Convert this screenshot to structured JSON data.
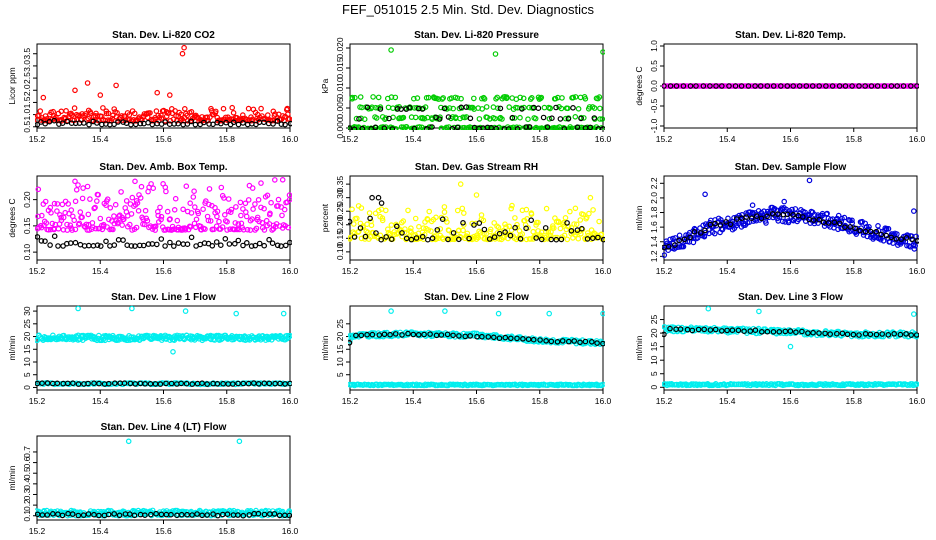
{
  "page": {
    "title": "FEF_051015  2.5 Min. Std. Dev. Diagnostics"
  },
  "chart_data": [
    {
      "id": "li820-co2",
      "type": "scatter",
      "title": "Stan. Dev. Li-820 CO2",
      "ylabel": "Licor ppm",
      "xlim": [
        15.2,
        16.0
      ],
      "ylim": [
        0.45,
        3.9
      ],
      "xticks": [
        15.2,
        15.4,
        15.6,
        15.8,
        16.0
      ],
      "xtick_labels": [
        "15.2",
        "15.4",
        "15.6",
        "15.8",
        "16.0"
      ],
      "yticks": [
        0.5,
        1.0,
        1.5,
        2.0,
        2.5,
        3.0,
        3.5
      ],
      "ytick_labels": [
        "0.5",
        "1.0",
        "1.5",
        "2.0",
        "2.5",
        "3.0",
        "3.5"
      ],
      "series": [
        {
          "color": "#ff0000",
          "gen": {
            "kind": "noise",
            "n": 240,
            "base": 0.85,
            "spread": 0.35,
            "seed": 11
          },
          "points": [
            [
              15.36,
              2.3
            ],
            [
              15.45,
              2.2
            ],
            [
              15.58,
              1.9
            ],
            [
              15.62,
              1.8
            ],
            [
              15.66,
              3.5
            ],
            [
              15.665,
              3.75
            ],
            [
              15.32,
              2.0
            ],
            [
              15.22,
              1.7
            ],
            [
              15.4,
              1.8
            ],
            [
              15.99,
              1.2
            ]
          ]
        },
        {
          "color": "#000000",
          "gen": {
            "kind": "noise",
            "n": 60,
            "base": 0.62,
            "spread": 0.1,
            "seed": 12
          }
        }
      ]
    },
    {
      "id": "li820-pressure",
      "type": "scatter",
      "title": "Stan. Dev. Li-820 Pressure",
      "ylabel": "kPa",
      "xlim": [
        15.2,
        16.0
      ],
      "ylim": [
        0.0,
        0.021
      ],
      "xticks": [
        15.2,
        15.4,
        15.6,
        15.8,
        16.0
      ],
      "xtick_labels": [
        "15.2",
        "15.4",
        "15.6",
        "15.8",
        "16.0"
      ],
      "yticks": [
        0.0,
        0.005,
        0.01,
        0.015,
        0.02
      ],
      "ytick_labels": [
        "0.000",
        "0.005",
        "0.010",
        "0.015",
        "0.020"
      ],
      "series": [
        {
          "color": "#00cc00",
          "gen": {
            "kind": "levels",
            "n": 320,
            "levels": [
              0.0,
              0.0,
              0.0025,
              0.005,
              0.0075
            ],
            "seed": 21
          },
          "points": [
            [
              15.33,
              0.0195
            ],
            [
              15.66,
              0.0185
            ],
            [
              16.0,
              0.019
            ]
          ]
        },
        {
          "color": "#000000",
          "gen": {
            "kind": "levels",
            "n": 60,
            "levels": [
              0.0,
              0.0,
              0.0025,
              0.005
            ],
            "seed": 22
          }
        }
      ]
    },
    {
      "id": "li820-temp",
      "type": "scatter",
      "title": "Stan. Dev. Li-820 Temp.",
      "ylabel": "degrees C",
      "xlim": [
        15.2,
        16.0
      ],
      "ylim": [
        -1.05,
        1.05
      ],
      "xticks": [
        15.2,
        15.4,
        15.6,
        15.8,
        16.0
      ],
      "xtick_labels": [
        "15.2",
        "15.4",
        "15.6",
        "15.8",
        "16.0"
      ],
      "yticks": [
        -1.0,
        -0.5,
        0.0,
        0.5,
        1.0
      ],
      "ytick_labels": [
        "-1.0",
        "-0.5",
        "0.0",
        "0.5",
        "1.0"
      ],
      "series": [
        {
          "color": "#ff00ff",
          "gen": {
            "kind": "line",
            "n": 200,
            "base": 0.0,
            "jitter": 0.0,
            "seed": 31
          }
        },
        {
          "color": "#000000",
          "gen": {
            "kind": "line",
            "n": 40,
            "base": 0.0,
            "jitter": 0.0,
            "seed": 32
          }
        }
      ]
    },
    {
      "id": "amb-box-temp",
      "type": "scatter",
      "title": "Stan. Dev. Amb. Box Temp.",
      "ylabel": "degrees C",
      "xlim": [
        15.2,
        16.0
      ],
      "ylim": [
        0.085,
        0.245
      ],
      "xticks": [
        15.2,
        15.4,
        15.6,
        15.8,
        16.0
      ],
      "xtick_labels": [
        "15.2",
        "15.4",
        "15.6",
        "15.8",
        "16.0"
      ],
      "yticks": [
        0.1,
        0.15,
        0.2
      ],
      "ytick_labels": [
        "0.10",
        "0.15",
        "0.20"
      ],
      "series": [
        {
          "color": "#ff00ff",
          "gen": {
            "kind": "noise",
            "n": 300,
            "base": 0.16,
            "spread": 0.06,
            "seed": 41
          },
          "points": [
            [
              15.32,
              0.235
            ],
            [
              15.51,
              0.235
            ],
            [
              15.36,
              0.225
            ]
          ]
        },
        {
          "color": "#000000",
          "gen": {
            "kind": "noise",
            "n": 60,
            "base": 0.115,
            "spread": 0.012,
            "seed": 42
          }
        }
      ]
    },
    {
      "id": "gas-stream-rh",
      "type": "scatter",
      "title": "Stan. Dev. Gas Stream RH",
      "ylabel": "percent",
      "xlim": [
        15.2,
        16.0
      ],
      "ylim": [
        0.07,
        0.38
      ],
      "xticks": [
        15.2,
        15.4,
        15.6,
        15.8,
        16.0
      ],
      "xtick_labels": [
        "15.2",
        "15.4",
        "15.6",
        "15.8",
        "16.0"
      ],
      "yticks": [
        0.1,
        0.15,
        0.2,
        0.25,
        0.3,
        0.35
      ],
      "ytick_labels": [
        "0.10",
        "0.15",
        "0.20",
        "0.25",
        "0.30",
        "0.35"
      ],
      "series": [
        {
          "color": "#ffff00",
          "gen": {
            "kind": "noise",
            "n": 300,
            "base": 0.17,
            "spread": 0.08,
            "seed": 51
          },
          "points": [
            [
              15.55,
              0.35
            ],
            [
              15.6,
              0.31
            ],
            [
              15.96,
              0.3
            ]
          ]
        },
        {
          "color": "#000000",
          "gen": {
            "kind": "noise",
            "n": 50,
            "base": 0.16,
            "spread": 0.05,
            "seed": 52
          },
          "points": [
            [
              15.27,
              0.3
            ],
            [
              15.29,
              0.3
            ],
            [
              15.3,
              0.28
            ]
          ]
        }
      ]
    },
    {
      "id": "sample-flow",
      "type": "scatter",
      "title": "Stan. Dev. Sample Flow",
      "ylabel": "ml/min",
      "xlim": [
        15.2,
        16.0
      ],
      "ylim": [
        1.15,
        2.3
      ],
      "xticks": [
        15.2,
        15.4,
        15.6,
        15.8,
        16.0
      ],
      "xtick_labels": [
        "15.2",
        "15.4",
        "15.6",
        "15.8",
        "16.0"
      ],
      "yticks": [
        1.2,
        1.4,
        1.6,
        1.8,
        2.0,
        2.2
      ],
      "ytick_labels": [
        "1.2",
        "1.4",
        "1.6",
        "1.8",
        "2.0",
        "2.2"
      ],
      "series": [
        {
          "color": "#0000dd",
          "gen": {
            "kind": "curve",
            "n": 320,
            "knots": [
              [
                15.2,
                1.3
              ],
              [
                15.35,
                1.6
              ],
              [
                15.55,
                1.78
              ],
              [
                15.7,
                1.72
              ],
              [
                15.85,
                1.55
              ],
              [
                16.0,
                1.38
              ]
            ],
            "spread": 0.1,
            "seed": 61
          },
          "points": [
            [
              15.33,
              2.05
            ],
            [
              15.66,
              2.24
            ],
            [
              15.99,
              1.82
            ],
            [
              15.58,
              1.95
            ],
            [
              15.48,
              1.9
            ]
          ]
        },
        {
          "color": "#000000",
          "gen": {
            "kind": "curve",
            "n": 50,
            "knots": [
              [
                15.2,
                1.3
              ],
              [
                15.35,
                1.62
              ],
              [
                15.55,
                1.78
              ],
              [
                15.7,
                1.7
              ],
              [
                15.85,
                1.55
              ],
              [
                16.0,
                1.4
              ]
            ],
            "spread": 0.03,
            "seed": 62
          }
        }
      ]
    },
    {
      "id": "line1-flow",
      "type": "scatter",
      "title": "Stan. Dev. Line 1 Flow",
      "ylabel": "ml/min",
      "xlim": [
        15.2,
        16.0
      ],
      "ylim": [
        -1,
        32
      ],
      "xticks": [
        15.2,
        15.4,
        15.6,
        15.8,
        16.0
      ],
      "xtick_labels": [
        "15.2",
        "15.4",
        "15.6",
        "15.8",
        "16.0"
      ],
      "yticks": [
        0,
        5,
        10,
        15,
        20,
        25,
        30
      ],
      "ytick_labels": [
        "0",
        "5",
        "10",
        "15",
        "20",
        "25",
        "30"
      ],
      "series": [
        {
          "color": "#00eeee",
          "gen": {
            "kind": "line",
            "n": 300,
            "base": 19.5,
            "jitter": 1.0,
            "seed": 71
          },
          "points": [
            [
              15.33,
              31
            ],
            [
              15.5,
              31
            ],
            [
              15.67,
              30
            ],
            [
              15.83,
              29
            ],
            [
              15.98,
              29
            ],
            [
              15.63,
              14
            ]
          ]
        },
        {
          "color": "#00eeee",
          "gen": {
            "kind": "line",
            "n": 150,
            "base": 1.5,
            "jitter": 0.3,
            "seed": 72
          }
        },
        {
          "color": "#000000",
          "gen": {
            "kind": "line",
            "n": 50,
            "base": 1.5,
            "jitter": 0.2,
            "seed": 73
          }
        }
      ]
    },
    {
      "id": "line2-flow",
      "type": "scatter",
      "title": "Stan. Dev. Line 2 Flow",
      "ylabel": "ml/min",
      "xlim": [
        15.2,
        16.0
      ],
      "ylim": [
        -1,
        32
      ],
      "xticks": [
        15.2,
        15.4,
        15.6,
        15.8,
        16.0
      ],
      "xtick_labels": [
        "15.2",
        "15.4",
        "15.6",
        "15.8",
        "16.0"
      ],
      "yticks": [
        5,
        10,
        15,
        20,
        25
      ],
      "ytick_labels": [
        "5",
        "10",
        "15",
        "20",
        "25"
      ],
      "series": [
        {
          "color": "#00eeee",
          "gen": {
            "kind": "curve",
            "n": 260,
            "knots": [
              [
                15.2,
                20.5
              ],
              [
                15.4,
                21
              ],
              [
                15.6,
                20.5
              ],
              [
                15.8,
                18.5
              ],
              [
                16.0,
                17.5
              ]
            ],
            "spread": 0.8,
            "seed": 81
          },
          "points": [
            [
              15.33,
              30
            ],
            [
              15.5,
              30
            ],
            [
              15.67,
              29
            ],
            [
              15.83,
              29
            ],
            [
              16.0,
              29
            ]
          ]
        },
        {
          "color": "#00eeee",
          "gen": {
            "kind": "line",
            "n": 200,
            "base": 1.0,
            "jitter": 0.25,
            "seed": 82
          }
        },
        {
          "color": "#000000",
          "gen": {
            "kind": "curve",
            "n": 45,
            "knots": [
              [
                15.2,
                20.5
              ],
              [
                15.4,
                21
              ],
              [
                15.6,
                20.2
              ],
              [
                15.8,
                18.5
              ],
              [
                16.0,
                17.5
              ]
            ],
            "spread": 0.3,
            "seed": 83
          }
        }
      ]
    },
    {
      "id": "line3-flow",
      "type": "scatter",
      "title": "Stan. Dev. Line 3 Flow",
      "ylabel": "ml/min",
      "xlim": [
        15.2,
        16.0
      ],
      "ylim": [
        -1,
        30
      ],
      "xticks": [
        15.2,
        15.4,
        15.6,
        15.8,
        16.0
      ],
      "xtick_labels": [
        "15.2",
        "15.4",
        "15.6",
        "15.8",
        "16.0"
      ],
      "yticks": [
        0,
        5,
        10,
        15,
        20,
        25
      ],
      "ytick_labels": [
        "0",
        "5",
        "10",
        "15",
        "20",
        "25"
      ],
      "series": [
        {
          "color": "#00eeee",
          "gen": {
            "kind": "curve",
            "n": 260,
            "knots": [
              [
                15.2,
                21.5
              ],
              [
                15.4,
                21
              ],
              [
                15.6,
                20.5
              ],
              [
                15.8,
                19.5
              ],
              [
                16.0,
                19.5
              ]
            ],
            "spread": 0.9,
            "seed": 91
          },
          "points": [
            [
              15.34,
              29
            ],
            [
              15.5,
              28
            ],
            [
              15.6,
              15
            ],
            [
              15.99,
              27
            ]
          ]
        },
        {
          "color": "#00eeee",
          "gen": {
            "kind": "line",
            "n": 200,
            "base": 1.0,
            "jitter": 0.3,
            "seed": 92
          }
        },
        {
          "color": "#000000",
          "gen": {
            "kind": "curve",
            "n": 45,
            "knots": [
              [
                15.2,
                21.5
              ],
              [
                15.4,
                21
              ],
              [
                15.6,
                20.5
              ],
              [
                15.8,
                19.5
              ],
              [
                16.0,
                19.5
              ]
            ],
            "spread": 0.3,
            "seed": 93
          }
        }
      ]
    },
    {
      "id": "line4-flow",
      "type": "scatter",
      "title": "Stan. Dev. Line 4 (LT) Flow",
      "ylabel": "ml/min",
      "xlim": [
        15.2,
        16.0
      ],
      "ylim": [
        0.06,
        0.85
      ],
      "xticks": [
        15.2,
        15.4,
        15.6,
        15.8,
        16.0
      ],
      "xtick_labels": [
        "15.2",
        "15.4",
        "15.6",
        "15.8",
        "16.0"
      ],
      "yticks": [
        0.1,
        0.2,
        0.3,
        0.4,
        0.5,
        0.6,
        0.7
      ],
      "ytick_labels": [
        "0.1",
        "0.2",
        "0.3",
        "0.4",
        "0.5",
        "0.6",
        "0.7"
      ],
      "series": [
        {
          "color": "#00eeee",
          "gen": {
            "kind": "line",
            "n": 300,
            "base": 0.125,
            "jitter": 0.025,
            "seed": 101
          },
          "points": [
            [
              15.49,
              0.8
            ],
            [
              15.84,
              0.8
            ]
          ]
        },
        {
          "color": "#000000",
          "gen": {
            "kind": "line",
            "n": 50,
            "base": 0.11,
            "jitter": 0.01,
            "seed": 102
          }
        }
      ]
    }
  ]
}
